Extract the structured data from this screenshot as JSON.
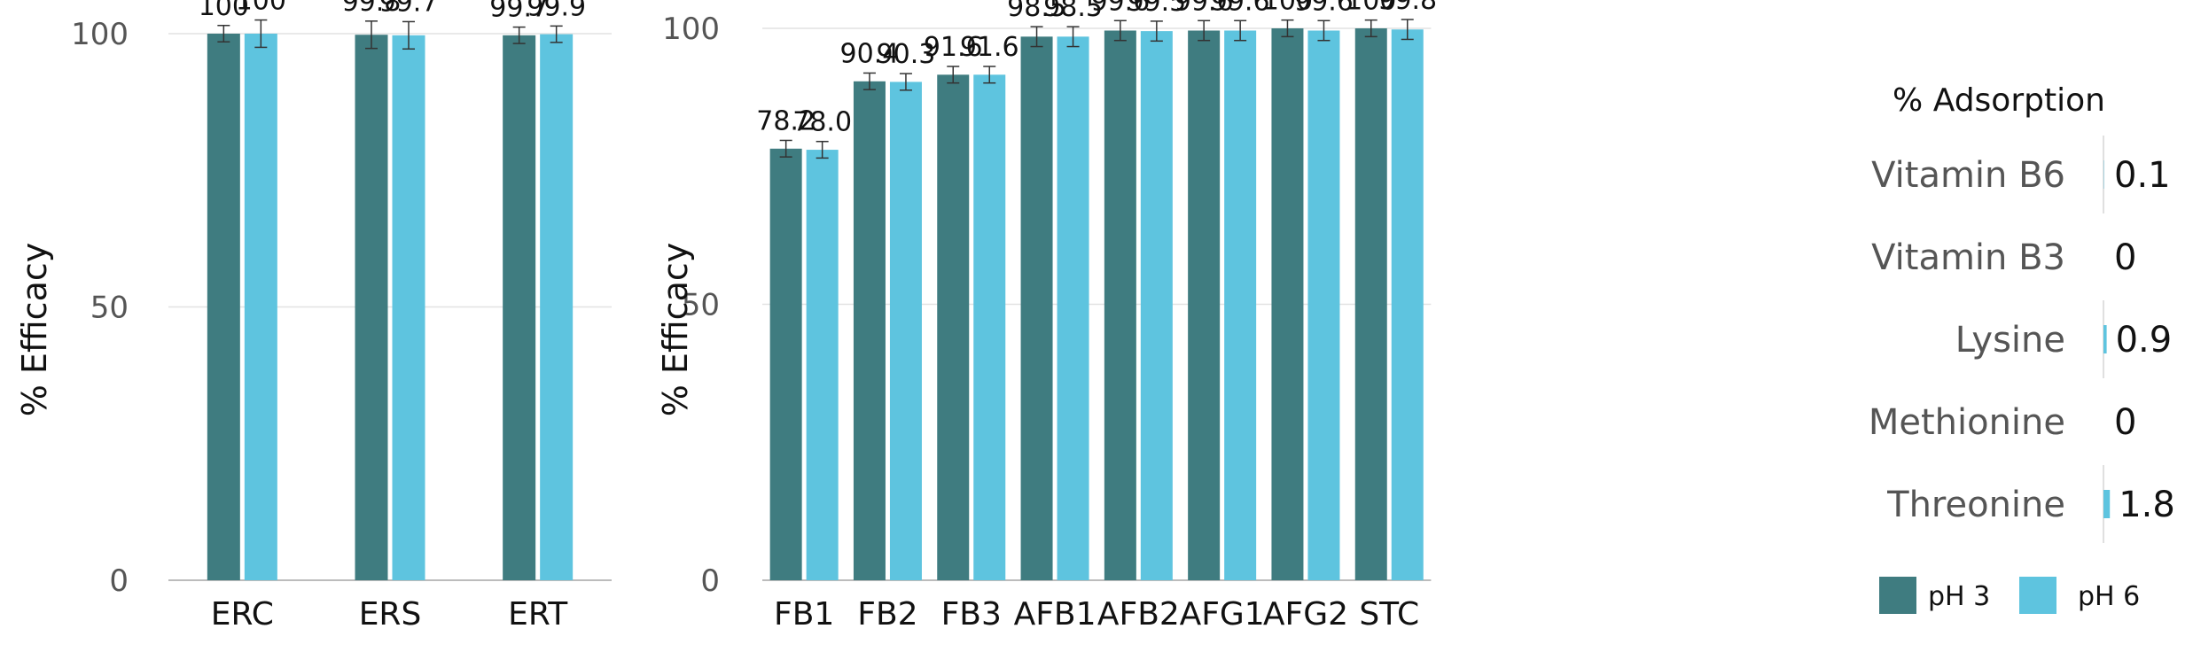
{
  "chart_data": [
    {
      "type": "bar",
      "ylabel": "% Efficacy",
      "ylim": [
        0,
        100
      ],
      "yticks": [
        "0",
        "50",
        "100"
      ],
      "grid": true,
      "categories": [
        "ERC",
        "ERS",
        "ERT"
      ],
      "series": [
        {
          "name": "pH 3",
          "values": [
            100,
            99.8,
            99.7
          ],
          "labels": [
            "100",
            "99.8",
            "99.7"
          ],
          "errors": [
            1.5,
            2.5,
            1.5
          ]
        },
        {
          "name": "pH 6",
          "values": [
            100,
            99.7,
            99.9
          ],
          "labels": [
            "100",
            "99.7",
            "99.9"
          ],
          "errors": [
            2.5,
            2.5,
            1.5
          ]
        }
      ]
    },
    {
      "type": "bar",
      "ylabel": "% Efficacy",
      "ylim": [
        0,
        100
      ],
      "yticks": [
        "0",
        "50",
        "100"
      ],
      "grid": true,
      "categories": [
        "FB1",
        "FB2",
        "FB3",
        "AFB1",
        "AFB2",
        "AFG1",
        "AFG2",
        "STC"
      ],
      "series": [
        {
          "name": "pH 3",
          "values": [
            78.2,
            90.4,
            91.6,
            98.5,
            99.6,
            99.6,
            100,
            100
          ],
          "labels": [
            "78.2",
            "90.4",
            "91.6",
            "98.5",
            "99.6",
            "99.6",
            "100",
            "100"
          ],
          "errors": [
            1.5,
            1.5,
            1.5,
            1.8,
            1.8,
            1.8,
            1.5,
            1.5
          ]
        },
        {
          "name": "pH 6",
          "values": [
            78.0,
            90.3,
            91.6,
            98.5,
            99.5,
            99.6,
            99.6,
            99.8
          ],
          "labels": [
            "78.0",
            "90.3",
            "91.6",
            "98.5",
            "99.5",
            "99.6",
            "99.6",
            "99.8"
          ],
          "errors": [
            1.5,
            1.5,
            1.5,
            1.8,
            1.8,
            1.8,
            1.8,
            1.8
          ]
        }
      ]
    },
    {
      "type": "bar",
      "orientation": "horizontal",
      "title": "% Adsorption",
      "categories": [
        "Vitamin B6",
        "Vitamin B3",
        "Lysine",
        "Methionine",
        "Threonine"
      ],
      "series": [
        {
          "name": "pH 6",
          "values": [
            0.1,
            0,
            0.9,
            0,
            1.8
          ],
          "labels": [
            "0.1",
            "0",
            "0.9",
            "0",
            "1.8"
          ]
        }
      ]
    }
  ],
  "legend": {
    "placement": "bottom-right",
    "items": [
      {
        "label": "pH 3",
        "color": "#3f7c80"
      },
      {
        "label": "pH 6",
        "color": "#5ec4df"
      }
    ]
  },
  "colors": {
    "ph3": "#3f7c80",
    "ph6": "#5ec4df",
    "grid": "#e2e2e2",
    "axis": "#bcbcbc",
    "error": "#333333"
  }
}
